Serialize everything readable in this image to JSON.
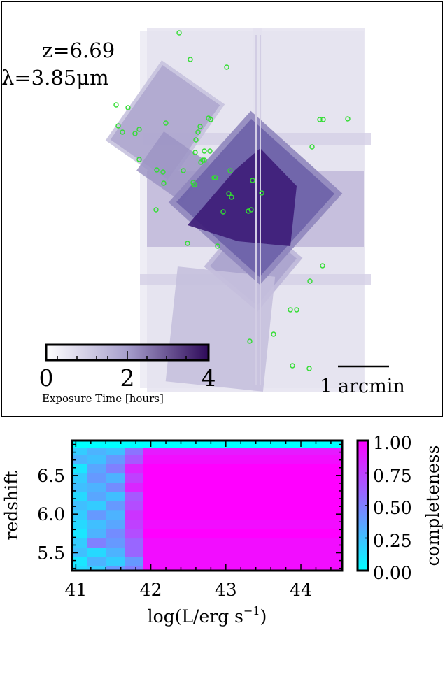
{
  "chart_data": [
    {
      "type": "map",
      "panel": "exposure-map",
      "annotations": {
        "redshift": "z=6.69",
        "wavelength": "λ=3.85μm"
      },
      "colorbar": {
        "label": "Exposure Time [hours]",
        "range": [
          0,
          4
        ],
        "ticks": [
          "0",
          "2",
          "4"
        ],
        "colors": [
          "#ffffff",
          "#2e0a5a"
        ]
      },
      "scalebar": {
        "label": "1 arcmin"
      },
      "point_color": "#33dd33",
      "points": [
        [
          256,
          47
        ],
        [
          272,
          85
        ],
        [
          324,
          96
        ],
        [
          166,
          150
        ],
        [
          183,
          154
        ],
        [
          169,
          180
        ],
        [
          175,
          189
        ],
        [
          199,
          185
        ],
        [
          193,
          191
        ],
        [
          237,
          176
        ],
        [
          298,
          169
        ],
        [
          301,
          171
        ],
        [
          286,
          181
        ],
        [
          283,
          189
        ],
        [
          280,
          200
        ],
        [
          279,
          218
        ],
        [
          292,
          216
        ],
        [
          290,
          229
        ],
        [
          287,
          232
        ],
        [
          292,
          229
        ],
        [
          300,
          216
        ],
        [
          199,
          228
        ],
        [
          224,
          243
        ],
        [
          233,
          246
        ],
        [
          262,
          244
        ],
        [
          276,
          261
        ],
        [
          278,
          264
        ],
        [
          306,
          254
        ],
        [
          308,
          254
        ],
        [
          329,
          244
        ],
        [
          361,
          258
        ],
        [
          234,
          262
        ],
        [
          327,
          277
        ],
        [
          331,
          282
        ],
        [
          374,
          276
        ],
        [
          319,
          303
        ],
        [
          223,
          300
        ],
        [
          355,
          302
        ],
        [
          359,
          300
        ],
        [
          268,
          348
        ],
        [
          311,
          352
        ],
        [
          446,
          210
        ],
        [
          457,
          171
        ],
        [
          462,
          171
        ],
        [
          497,
          170
        ],
        [
          461,
          380
        ],
        [
          443,
          402
        ],
        [
          415,
          443
        ],
        [
          424,
          443
        ],
        [
          391,
          478
        ],
        [
          357,
          488
        ],
        [
          418,
          523
        ],
        [
          442,
          527
        ]
      ]
    },
    {
      "type": "heatmap",
      "panel": "completeness",
      "xlabel": "log(L/erg s",
      "xlabel_sup": "−1",
      "xlabel_end": ")",
      "ylabel": "redshift",
      "xlim": [
        40.95,
        44.55
      ],
      "ylim": [
        5.27,
        6.95
      ],
      "xticks": [
        "41",
        "42",
        "43",
        "44"
      ],
      "yticks": [
        "5.5",
        "6.0",
        "6.5"
      ],
      "colorbar": {
        "label": "completeness",
        "range": [
          0,
          1
        ],
        "ticks": [
          "0.00",
          "0.25",
          "0.50",
          "0.75",
          "1.00"
        ],
        "colors": [
          "#00ffff",
          "#ff00ff"
        ]
      },
      "x_bins": [
        40.95,
        41.15,
        41.4,
        41.65,
        41.9,
        44.55
      ],
      "y_bins": [
        5.27,
        5.33,
        5.45,
        5.57,
        5.69,
        5.81,
        5.93,
        6.05,
        6.17,
        6.29,
        6.41,
        6.53,
        6.65,
        6.77,
        6.86,
        6.95
      ],
      "values": [
        [
          0.15,
          0.2,
          0.4,
          0.5,
          0.95
        ],
        [
          0.1,
          0.3,
          0.2,
          0.4,
          0.95
        ],
        [
          0.25,
          0.15,
          0.3,
          0.6,
          0.95
        ],
        [
          0.2,
          0.5,
          0.4,
          0.6,
          0.95
        ],
        [
          0.1,
          0.3,
          0.45,
          0.7,
          1.0
        ],
        [
          0.15,
          0.25,
          0.35,
          0.75,
          0.95
        ],
        [
          0.2,
          0.4,
          0.3,
          0.8,
          1.0
        ],
        [
          0.25,
          0.2,
          0.4,
          0.7,
          1.0
        ],
        [
          0.15,
          0.35,
          0.25,
          0.65,
          1.0
        ],
        [
          0.25,
          0.3,
          0.45,
          0.85,
          1.0
        ],
        [
          0.2,
          0.4,
          0.3,
          0.75,
          1.0
        ],
        [
          0.1,
          0.35,
          0.5,
          0.85,
          1.0
        ],
        [
          0.3,
          0.25,
          0.4,
          0.65,
          0.95
        ],
        [
          0.2,
          0.3,
          0.25,
          0.55,
          0.9
        ],
        [
          0.0,
          0.0,
          0.0,
          0.0,
          0.0
        ]
      ]
    }
  ]
}
